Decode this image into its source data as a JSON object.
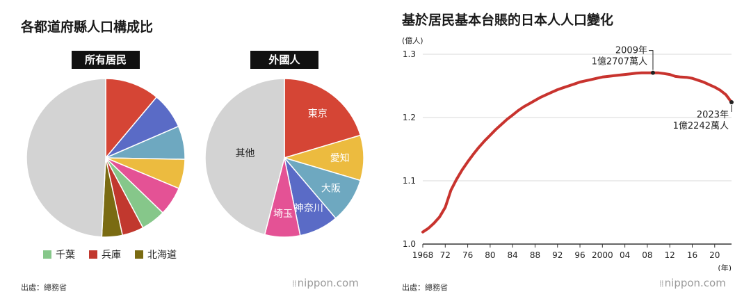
{
  "left": {
    "title": "各都道府縣人口構成比",
    "source": "出處：總務省",
    "brand": "nippon.com",
    "legend": [
      {
        "label": "千葉",
        "color": "#86c78a"
      },
      {
        "label": "兵庫",
        "color": "#c1382e"
      },
      {
        "label": "北海道",
        "color": "#7a6b12"
      }
    ]
  },
  "right": {
    "title": "基於居民基本台賬的日本人人口變化",
    "source": "出處：總務省",
    "brand": "nippon.com"
  },
  "colors": {
    "red": "#d54535",
    "blue": "#5a6bc6",
    "teal": "#6ea8c0",
    "yellow": "#ecbb3f",
    "pink": "#e45295",
    "green": "#86c78a",
    "darkred": "#c1382e",
    "olive": "#7a6b12",
    "gray": "#d3d3d3",
    "line": "#c8332e",
    "grid": "#d9d9d9"
  },
  "chart_data": [
    {
      "type": "pie",
      "label": "所有居民",
      "slices": [
        {
          "name": "",
          "value": 11.1,
          "color": "red"
        },
        {
          "name": "",
          "value": 7.4,
          "color": "blue"
        },
        {
          "name": "",
          "value": 6.8,
          "color": "teal"
        },
        {
          "name": "",
          "value": 6.0,
          "color": "yellow"
        },
        {
          "name": "",
          "value": 5.9,
          "color": "pink"
        },
        {
          "name": "千葉",
          "value": 5.0,
          "color": "green"
        },
        {
          "name": "兵庫",
          "value": 4.4,
          "color": "darkred"
        },
        {
          "name": "北海道",
          "value": 4.2,
          "color": "olive"
        },
        {
          "name": "",
          "value": 49.2,
          "color": "gray"
        }
      ]
    },
    {
      "type": "pie",
      "label": "外國人",
      "slices": [
        {
          "name": "東京",
          "value": 20.4,
          "color": "red"
        },
        {
          "name": "愛知",
          "value": 9.2,
          "color": "yellow"
        },
        {
          "name": "大阪",
          "value": 9.2,
          "color": "teal"
        },
        {
          "name": "神奈川",
          "value": 8.0,
          "color": "blue"
        },
        {
          "name": "埼玉",
          "value": 7.2,
          "color": "pink"
        },
        {
          "name": "其他",
          "value": 46.0,
          "color": "gray"
        }
      ]
    },
    {
      "type": "line",
      "ylabel": "(億人)",
      "xlabel": "(年)",
      "ylim": [
        1.0,
        1.3
      ],
      "yticks": [
        "1.0",
        "1.1",
        "1.2",
        "1.3"
      ],
      "xlim": [
        1968,
        2023
      ],
      "xticks": [
        "1968",
        "72",
        "76",
        "80",
        "84",
        "88",
        "92",
        "96",
        "2000",
        "04",
        "08",
        "12",
        "16",
        "20"
      ],
      "x": [
        1968,
        1969,
        1970,
        1971,
        1972,
        1973,
        1974,
        1975,
        1976,
        1977,
        1978,
        1979,
        1980,
        1981,
        1982,
        1983,
        1984,
        1985,
        1986,
        1987,
        1988,
        1989,
        1990,
        1991,
        1992,
        1993,
        1994,
        1995,
        1996,
        1997,
        1998,
        1999,
        2000,
        2001,
        2002,
        2003,
        2004,
        2005,
        2006,
        2007,
        2008,
        2009,
        2010,
        2011,
        2012,
        2013,
        2014,
        2015,
        2016,
        2017,
        2018,
        2019,
        2020,
        2021,
        2022,
        2023
      ],
      "y": [
        1.019,
        1.025,
        1.033,
        1.043,
        1.058,
        1.085,
        1.102,
        1.117,
        1.13,
        1.142,
        1.153,
        1.163,
        1.172,
        1.181,
        1.189,
        1.197,
        1.204,
        1.211,
        1.217,
        1.222,
        1.227,
        1.232,
        1.236,
        1.24,
        1.244,
        1.247,
        1.25,
        1.253,
        1.256,
        1.258,
        1.26,
        1.262,
        1.264,
        1.265,
        1.266,
        1.267,
        1.268,
        1.269,
        1.27,
        1.2705,
        1.2707,
        1.2707,
        1.2705,
        1.2695,
        1.268,
        1.265,
        1.264,
        1.2635,
        1.262,
        1.259,
        1.256,
        1.252,
        1.248,
        1.243,
        1.236,
        1.2242
      ],
      "annotations": [
        {
          "year": "2009年",
          "value": "1億2707萬人",
          "x": 2009,
          "y": 1.2707
        },
        {
          "year": "2023年",
          "value": "1億2242萬人",
          "x": 2023,
          "y": 1.2242
        }
      ]
    }
  ]
}
